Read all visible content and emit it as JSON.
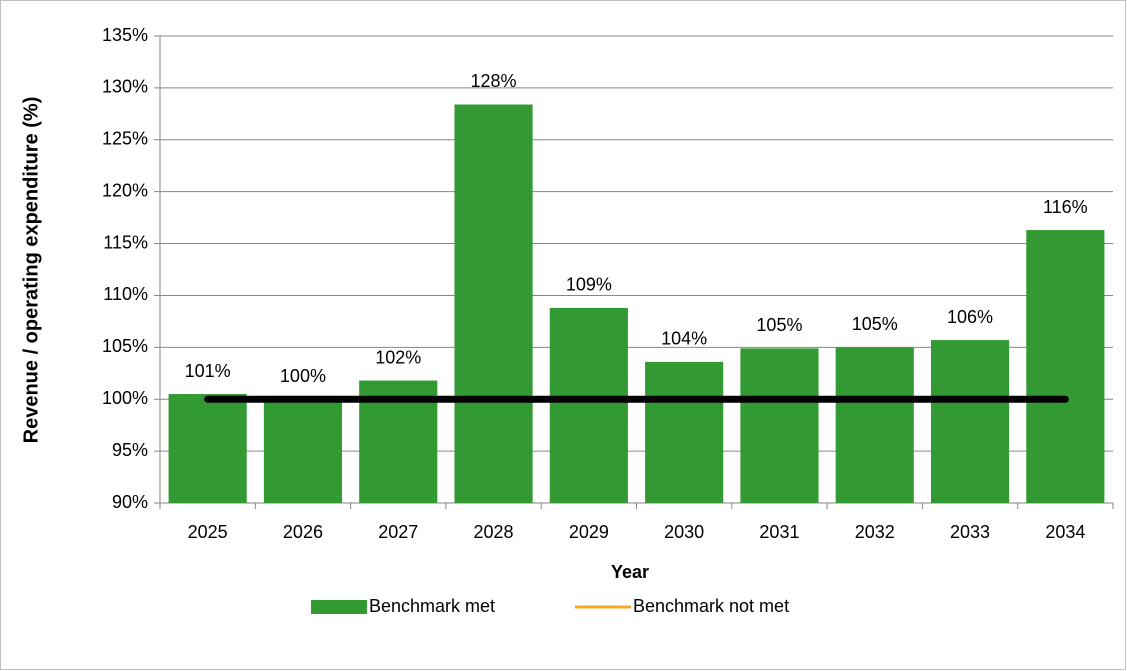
{
  "chart_data": {
    "type": "bar",
    "x_label": "Year",
    "y_label": "Revenue / operating expenditure (%)",
    "categories": [
      "2025",
      "2026",
      "2027",
      "2028",
      "2029",
      "2030",
      "2031",
      "2032",
      "2033",
      "2034"
    ],
    "series": [
      {
        "name": "Benchmark met",
        "color": "#339933",
        "values": [
          100.5,
          100.0,
          101.8,
          128.4,
          108.8,
          103.6,
          104.9,
          105.0,
          105.7,
          116.3
        ],
        "value_labels": [
          "101%",
          "100%",
          "102%",
          "128%",
          "109%",
          "104%",
          "105%",
          "105%",
          "106%",
          "116%"
        ]
      },
      {
        "name": "Benchmark not met",
        "color": "#f5a623",
        "values": [
          null,
          null,
          null,
          null,
          null,
          null,
          null,
          null,
          null,
          null
        ]
      }
    ],
    "benchmark": {
      "color": "#000000",
      "values": [
        100,
        100,
        100,
        100,
        100,
        100,
        100,
        100,
        100,
        100
      ]
    },
    "ylim": [
      90,
      135
    ],
    "yticks": [
      {
        "value": 90,
        "label": "90%"
      },
      {
        "value": 95,
        "label": "95%"
      },
      {
        "value": 100,
        "label": "100%"
      },
      {
        "value": 105,
        "label": "105%"
      },
      {
        "value": 110,
        "label": "110%"
      },
      {
        "value": 115,
        "label": "115%"
      },
      {
        "value": 120,
        "label": "120%"
      },
      {
        "value": 125,
        "label": "125%"
      },
      {
        "value": 130,
        "label": "130%"
      },
      {
        "value": 135,
        "label": "135%"
      }
    ],
    "grid": true,
    "legend": "bottom"
  }
}
